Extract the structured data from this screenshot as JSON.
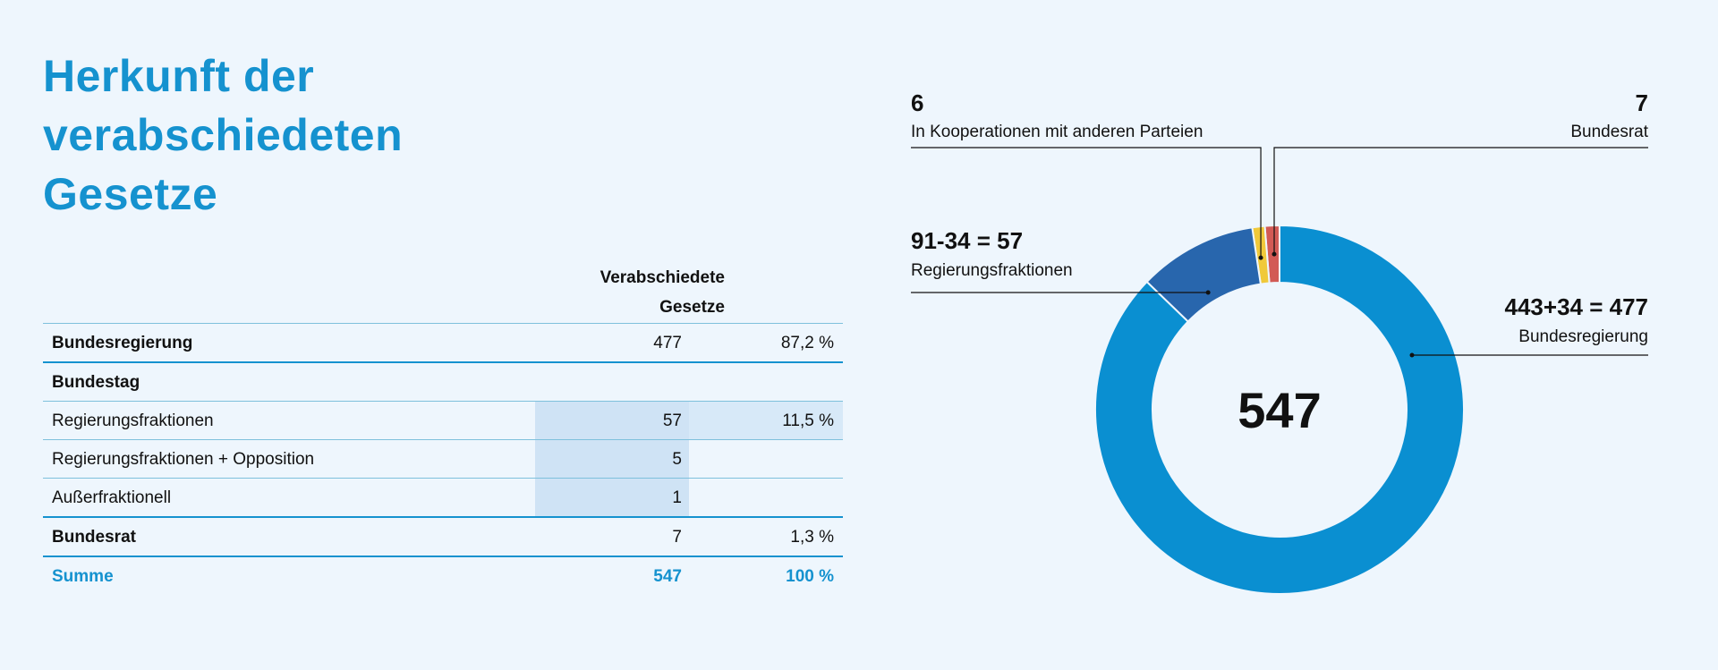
{
  "title_lines": [
    "Herkunft der",
    "verabschiedeten",
    "Gesetze"
  ],
  "table": {
    "column_header_lines": [
      "Verabschiedete",
      "Gesetze"
    ],
    "rows": [
      {
        "label": "Bundesregierung",
        "value": "477",
        "percent": "87,2 %",
        "bold": true
      },
      {
        "label": "Bundestag",
        "value": "",
        "percent": "",
        "bold": true
      },
      {
        "label": "Regierungsfraktionen",
        "value": "57",
        "percent": "11,5 %",
        "bold": false
      },
      {
        "label": "Regierungsfraktionen + Opposition",
        "value": "5",
        "percent": "",
        "bold": false
      },
      {
        "label": "Außerfraktionell",
        "value": "1",
        "percent": "",
        "bold": false
      },
      {
        "label": "Bundesrat",
        "value": "7",
        "percent": "1,3 %",
        "bold": true
      }
    ],
    "sum": {
      "label": "Summe",
      "value": "547",
      "percent": "100 %"
    }
  },
  "chart_data": {
    "type": "pie",
    "total": 547,
    "center_label": "547",
    "slices": [
      {
        "name": "Bundesregierung",
        "value": 477,
        "value_label": "443+34 = 477",
        "color": "#0a8fd1"
      },
      {
        "name": "Regierungsfraktionen",
        "value": 57,
        "value_label": "91-34 = 57",
        "color": "#2866ad"
      },
      {
        "name": "In Kooperationen mit anderen Parteien",
        "value": 6,
        "value_label": "6",
        "color": "#f0c93a"
      },
      {
        "name": "Bundesrat",
        "value": 7,
        "value_label": "7",
        "color": "#d25a55"
      }
    ]
  }
}
